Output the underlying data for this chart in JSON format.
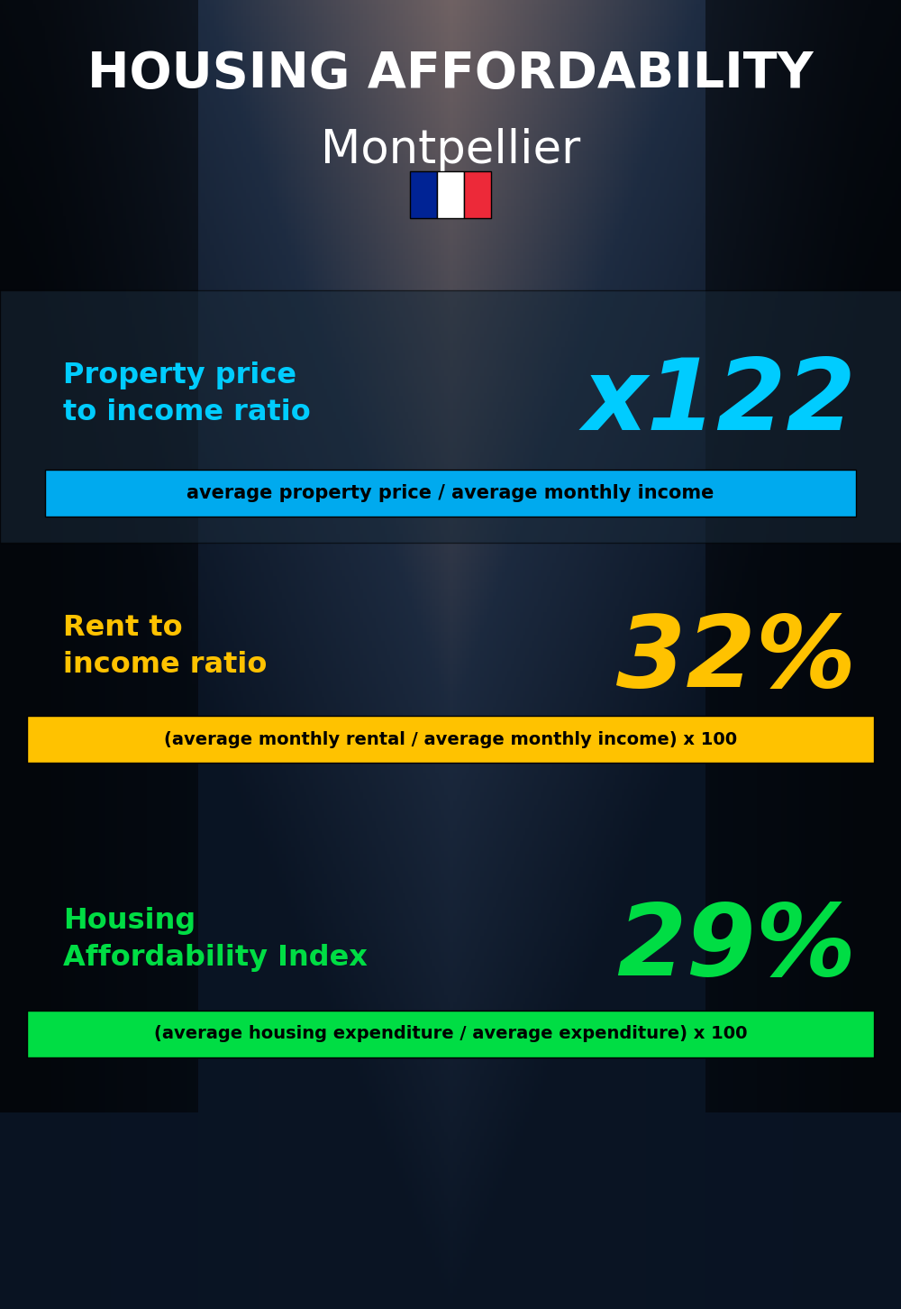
{
  "title_line1": "HOUSING AFFORDABILITY",
  "title_line2": "Montpellier",
  "bg_color": "#081018",
  "section1_label": "Property price\nto income ratio",
  "section1_value": "x122",
  "section1_label_color": "#00ccff",
  "section1_value_color": "#00ccff",
  "section1_formula": "average property price / average monthly income",
  "section1_formula_bg": "#00aaee",
  "section2_label": "Rent to\nincome ratio",
  "section2_value": "32%",
  "section2_label_color": "#ffc200",
  "section2_value_color": "#ffc200",
  "section2_formula": "(average monthly rental / average monthly income) x 100",
  "section2_formula_bg": "#ffc200",
  "section3_label": "Housing\nAffordability Index",
  "section3_value": "29%",
  "section3_label_color": "#00dd44",
  "section3_value_color": "#00dd44",
  "section3_formula": "(average housing expenditure / average expenditure) x 100",
  "section3_formula_bg": "#00dd44",
  "title_color": "#ffffff",
  "subtitle_color": "#ffffff",
  "formula_text_color": "#000000",
  "flag_blue": "#002395",
  "flag_white": "#FFFFFF",
  "flag_red": "#ED2939",
  "overlay_color": "#0d1e2e",
  "section1_panel_color": "#1a2a3a"
}
